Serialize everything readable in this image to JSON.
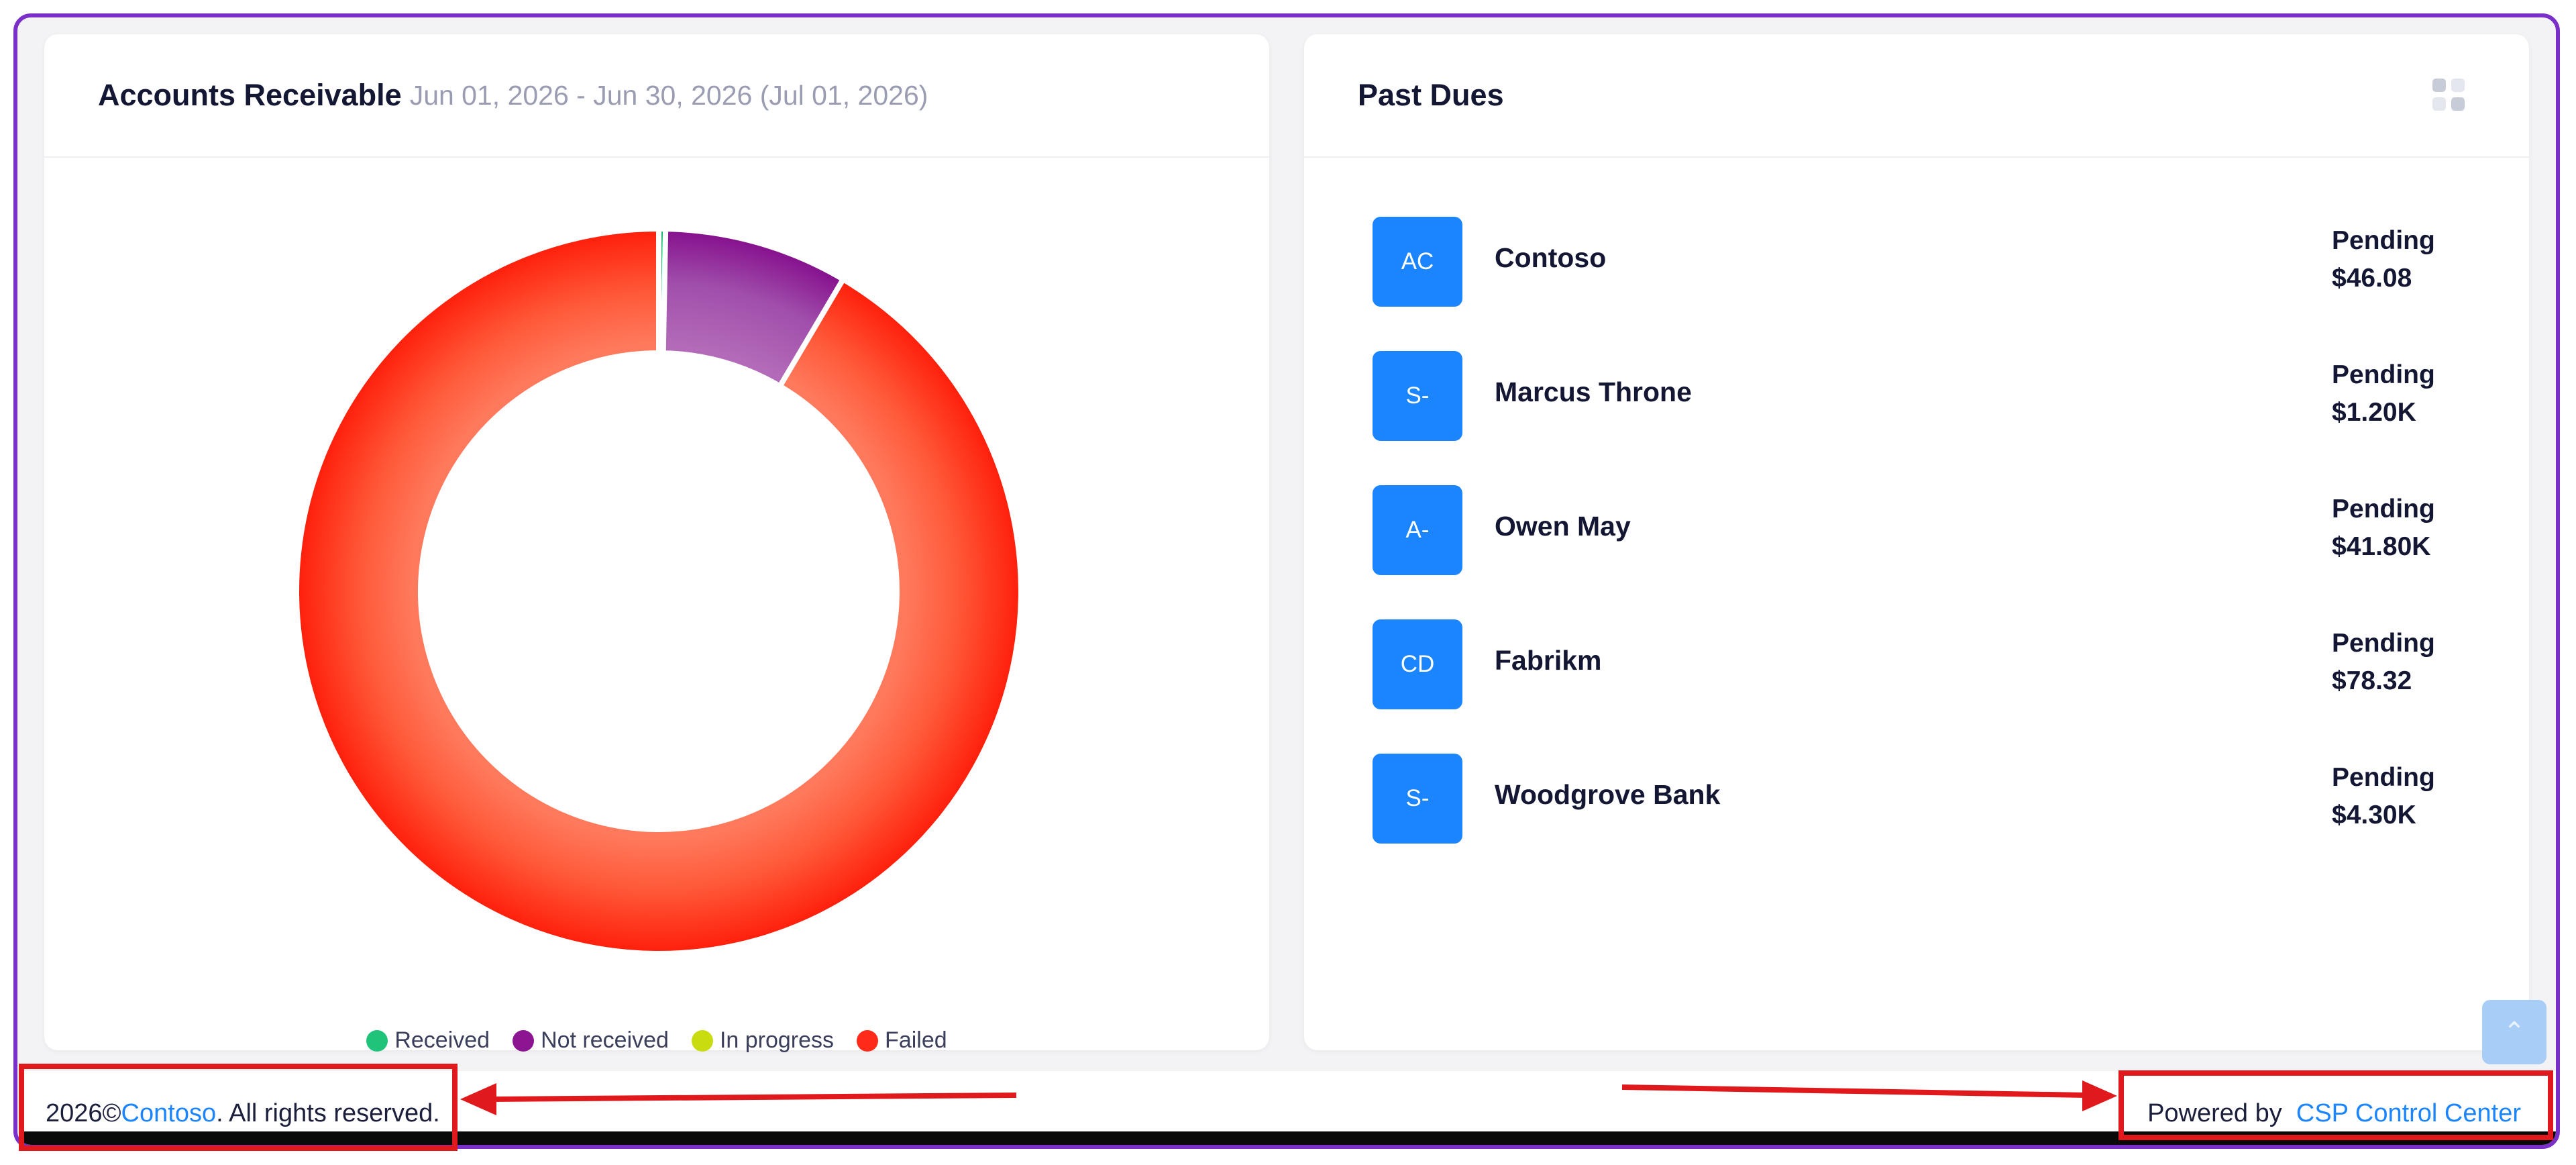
{
  "accounts_receivable": {
    "title": "Accounts Receivable",
    "subtitle": "Jun 01, 2026 - Jun 30, 2026 (Jul 01, 2026)"
  },
  "chart_data": {
    "type": "pie",
    "categories": [
      "Received",
      "Not received",
      "In progress",
      "Failed"
    ],
    "values": [
      0.3,
      8.2,
      0,
      91.5
    ],
    "colors": [
      "#1fc47a",
      "#8c1591",
      "#c9dc0f",
      "#ff2a1a"
    ],
    "legend": "bottom"
  },
  "past_dues": {
    "title": "Past Dues",
    "icon": "grid-icon",
    "items": [
      {
        "initials": "AC",
        "name": "Contoso",
        "status": "Pending",
        "amount": "$46.08"
      },
      {
        "initials": "S-",
        "name": "Marcus Throne",
        "status": "Pending",
        "amount": "$1.20K"
      },
      {
        "initials": "A-",
        "name": "Owen May",
        "status": "Pending",
        "amount": "$41.80K"
      },
      {
        "initials": "CD",
        "name": "Fabrikm",
        "status": "Pending",
        "amount": "$78.32"
      },
      {
        "initials": "S-",
        "name": "Woodgrove Bank",
        "status": "Pending",
        "amount": "$4.30K"
      }
    ]
  },
  "scroll_top_icon": "chevron-up-icon",
  "footer": {
    "year": "2026©",
    "company": "Contoso",
    "rights": ". All rights reserved.",
    "powered_by": "Powered by",
    "powered_link": "CSP Control Center"
  },
  "colors": {
    "accent": "#1b84ff",
    "annotation": "#e0191c",
    "frame": "#7b2fc9"
  }
}
